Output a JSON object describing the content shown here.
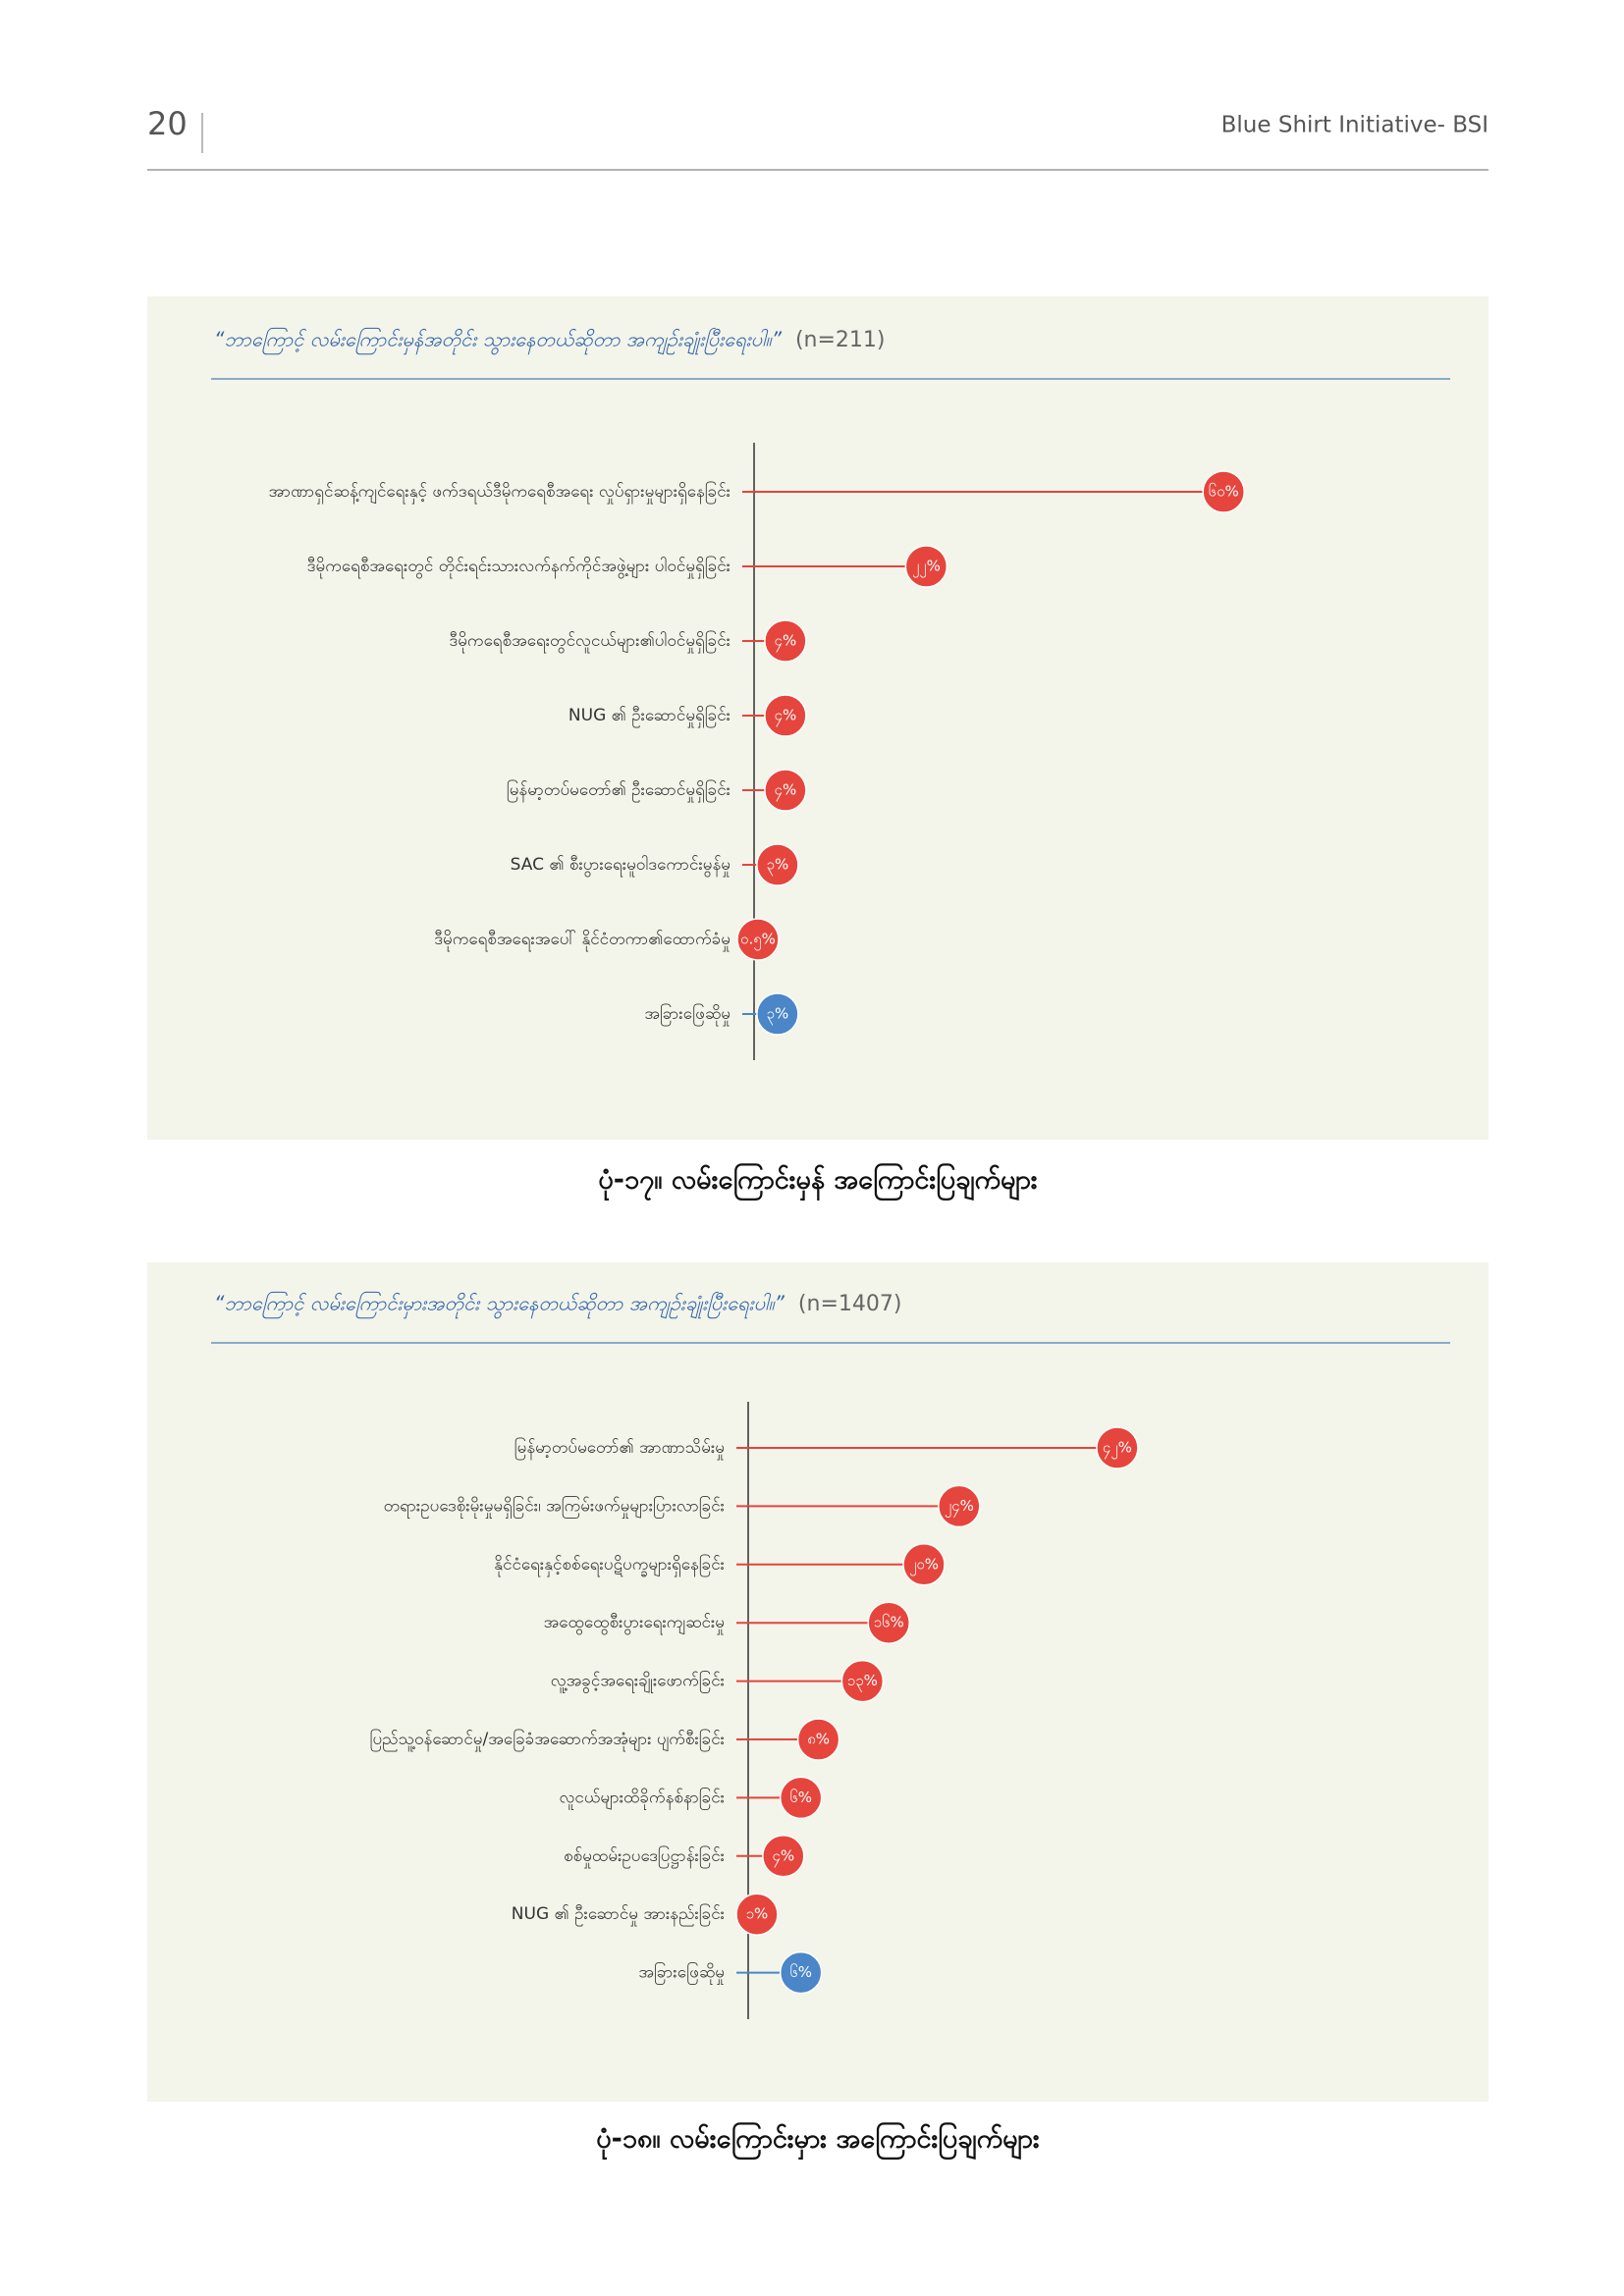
{
  "header": {
    "page_number": "20",
    "publication": "Blue Shirt Initiative- BSI"
  },
  "chart_data": [
    {
      "type": "lollipop",
      "question": "“ဘာကြောင့် လမ်းကြောင်းမှန်အတိုင်း သွားနေတယ်ဆိုတာ အကျဉ်းချုံးပြီးရေးပါ။”",
      "sample": "(n=211)",
      "categories": [
        "အာဏာရှင်ဆန့်ကျင်ရေးနှင့် ဖက်ဒရယ်ဒီမိုကရေစီအရေး လှုပ်ရှားမှုများရှိနေခြင်း",
        "ဒီမိုကရေစီအရေးတွင် တိုင်းရင်းသားလက်နက်ကိုင်အဖွဲ့များ ပါဝင်မှုရှိခြင်း",
        "ဒီမိုကရေစီအရေးတွင်လူငယ်များ၏ပါဝင်မှုရှိခြင်း",
        "NUG ၏ ဦးဆောင်မှုရှိခြင်း",
        "မြန်မာ့တပ်မတော်၏ ဦးဆောင်မှုရှိခြင်း",
        "SAC ၏ စီးပွားရေးမူဝါဒကောင်းမွန်မှု",
        "ဒီမိုကရေစီအရေးအပေါ် နိုင်ငံတကာ၏ထောက်ခံမှု",
        "အခြားဖြေဆိုမှု"
      ],
      "values": [
        60,
        22,
        4,
        4,
        4,
        3,
        0.5,
        3
      ],
      "value_labels": [
        "၆၀%",
        "၂၂%",
        "၄%",
        "၄%",
        "၄%",
        "၃%",
        "၀.၅%",
        "၃%"
      ],
      "colors": [
        "#e5453c",
        "#e5453c",
        "#e5453c",
        "#e5453c",
        "#e5453c",
        "#e5453c",
        "#e5453c",
        "#4a86c8"
      ],
      "caption": "ပုံ-၁၇။ လမ်းကြောင်းမှန် အကြောင်းပြချက်များ"
    },
    {
      "type": "lollipop",
      "question": "“ဘာကြောင့် လမ်းကြောင်းမှားအတိုင်း သွားနေတယ်ဆိုတာ အကျဉ်းချုံးပြီးရေးပါ။”",
      "sample": "(n=1407)",
      "categories": [
        "မြန်မာ့တပ်မတော်၏ အာဏာသိမ်းမှု",
        "တရားဥပဒေစိုးမိုးမှုမရှိခြင်း၊ အကြမ်းဖက်မှုများပြားလာခြင်း",
        "နိုင်ငံရေးနှင့်စစ်ရေးပဋိပက္ခများရှိနေခြင်း",
        "အထွေထွေစီးပွားရေးကျဆင်းမှု",
        "လူ့အခွင့်အရေးချိုးဖောက်ခြင်း",
        "ပြည်သူ့ဝန်ဆောင်မှု/အခြေခံအဆောက်အအုံများ ပျက်စီးခြင်း",
        "လူငယ်များထိခိုက်နစ်နာခြင်း",
        "စစ်မှုထမ်းဥပဒေပြဋ္ဌာန်းခြင်း",
        "NUG ၏ ဦးဆောင်မှု အားနည်းခြင်း",
        "အခြားဖြေဆိုမှု"
      ],
      "values": [
        42,
        24,
        20,
        16,
        13,
        8,
        6,
        4,
        1,
        6
      ],
      "value_labels": [
        "၄၂%",
        "၂၄%",
        "၂၀%",
        "၁၆%",
        "၁၃%",
        "၈%",
        "၆%",
        "၄%",
        "၁%",
        "၆%"
      ],
      "colors": [
        "#e5453c",
        "#e5453c",
        "#e5453c",
        "#e5453c",
        "#e5453c",
        "#e5453c",
        "#e5453c",
        "#e5453c",
        "#e5453c",
        "#4a86c8"
      ],
      "caption": "ပုံ-၁၈။ လမ်းကြောင်းမှား အကြောင်းပြချက်များ"
    }
  ]
}
